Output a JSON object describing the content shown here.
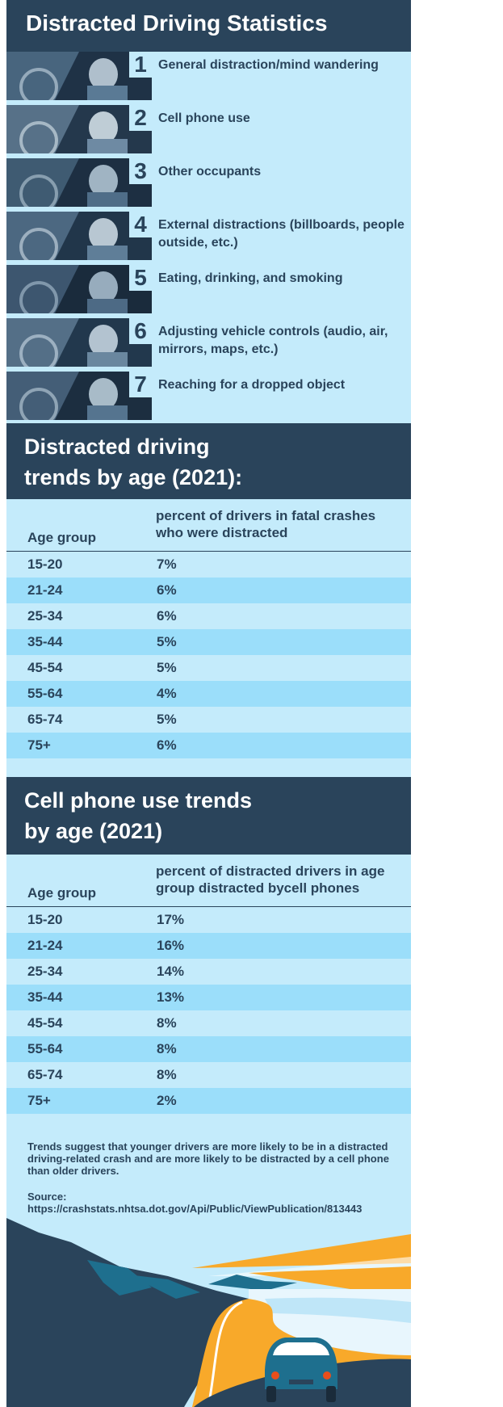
{
  "title": "Distracted Driving Statistics",
  "distractions": [
    {
      "num": "1",
      "label": "General distraction/mind wandering",
      "photo": "woman-driving-smiling-photo"
    },
    {
      "num": "2",
      "label": "Cell phone use",
      "photo": "hand-holding-phone-at-wheel-photo"
    },
    {
      "num": "3",
      "label": "Other occupants",
      "photo": "passengers-in-back-seat-photo"
    },
    {
      "num": "4",
      "label": "External distractions (billboards, people outside, etc.)",
      "photo": "man-looking-out-window-photo"
    },
    {
      "num": "5",
      "label": "Eating, drinking, and smoking",
      "photo": "hand-with-food-at-wheel-photo"
    },
    {
      "num": "6",
      "label": "Adjusting vehicle controls (audio, air, mirrors, maps, etc.)",
      "photo": "hand-on-dashboard-controls-photo"
    },
    {
      "num": "7",
      "label": "Reaching for a dropped object",
      "photo": "reaching-between-seats-photo"
    }
  ],
  "trends_by_age": {
    "title_line1": "Distracted driving",
    "title_line2": "trends by age (2021):",
    "col_age": "Age group",
    "col_pct": "percent of drivers in fatal crashes who were distracted",
    "rows": [
      {
        "age": "15-20",
        "value": "7%"
      },
      {
        "age": "21-24",
        "value": "6%"
      },
      {
        "age": "25-34",
        "value": "6%"
      },
      {
        "age": "35-44",
        "value": "5%"
      },
      {
        "age": "45-54",
        "value": "5%"
      },
      {
        "age": "55-64",
        "value": "4%"
      },
      {
        "age": "65-74",
        "value": "5%"
      },
      {
        "age": "75+",
        "value": "6%"
      }
    ]
  },
  "cell_phone_trends": {
    "title_line1": "Cell phone use trends",
    "title_line2": "by age (2021)",
    "col_age": "Age group",
    "col_pct": "percent of distracted drivers in age group distracted bycell phones",
    "rows": [
      {
        "age": "15-20",
        "value": "17%"
      },
      {
        "age": "21-24",
        "value": "16%"
      },
      {
        "age": "25-34",
        "value": "14%"
      },
      {
        "age": "35-44",
        "value": "13%"
      },
      {
        "age": "45-54",
        "value": "8%"
      },
      {
        "age": "55-64",
        "value": "8%"
      },
      {
        "age": "65-74",
        "value": "8%"
      },
      {
        "age": "75+",
        "value": "2%"
      }
    ]
  },
  "footnote": "Trends suggest that younger drivers are more likely to be in a distracted driving-related crash and are more likely to be distracted by a cell phone than older drivers.",
  "source_label": "Source:",
  "source_url": "https://crashstats.nhtsa.dot.gov/Api/Public/ViewPublication/813443",
  "colors": {
    "navy": "#2a445b",
    "light_blue": "#c4ebfb",
    "row_alt": "#9bdefa",
    "orange": "#f8a92a",
    "teal": "#1e6f8e"
  },
  "illustration": "car-driving-coastal-road-illustration"
}
